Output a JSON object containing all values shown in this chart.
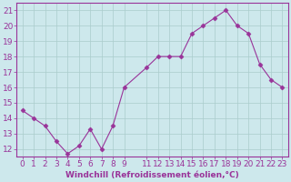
{
  "x": [
    0,
    1,
    2,
    3,
    4,
    5,
    6,
    7,
    8,
    9,
    11,
    12,
    13,
    14,
    15,
    16,
    17,
    18,
    19,
    20,
    21,
    22,
    23
  ],
  "y": [
    14.5,
    14.0,
    13.5,
    12.5,
    11.7,
    12.2,
    13.3,
    12.0,
    13.5,
    16.0,
    17.3,
    18.0,
    18.0,
    18.0,
    19.5,
    20.0,
    20.5,
    21.0,
    20.0,
    19.5,
    17.5,
    16.5,
    16.0
  ],
  "xlabel": "Windchill (Refroidissement éolien,°C)",
  "ylim": [
    11.5,
    21.5
  ],
  "xlim": [
    -0.5,
    23.5
  ],
  "yticks": [
    12,
    13,
    14,
    15,
    16,
    17,
    18,
    19,
    20,
    21
  ],
  "xticks": [
    0,
    1,
    2,
    3,
    4,
    5,
    6,
    7,
    8,
    9,
    11,
    12,
    13,
    14,
    15,
    16,
    17,
    18,
    19,
    20,
    21,
    22,
    23
  ],
  "line_color": "#993399",
  "marker": "D",
  "marker_size": 2.5,
  "bg_color": "#cde8ec",
  "grid_color": "#aacccc",
  "axis_color": "#993399",
  "label_color": "#993399",
  "tick_color": "#993399",
  "xlabel_fontsize": 6.5,
  "tick_fontsize": 6.5,
  "fig_width": 3.2,
  "fig_height": 2.0,
  "dpi": 100
}
